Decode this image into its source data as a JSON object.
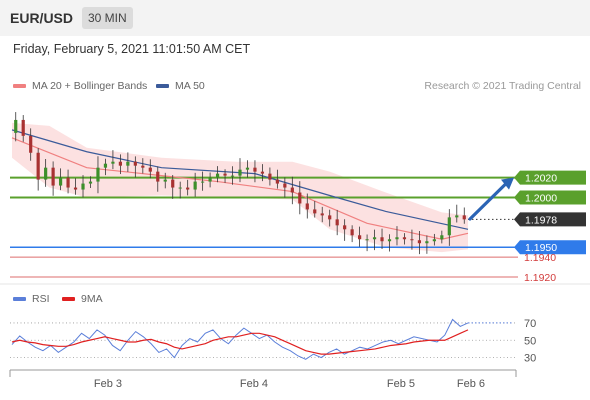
{
  "header": {
    "pair": "EUR/USD",
    "timeframe": "30 MIN"
  },
  "timestamp": "Friday, February 5, 2021 11:01:50 AM CET",
  "legend": {
    "ma20_label": "MA 20 + Bollinger Bands",
    "ma50_label": "MA 50",
    "ma20_color": "#f08080",
    "ma50_color": "#3b5b9a",
    "credit": "Research © 2021 Trading Central"
  },
  "rsi_legend": {
    "rsi_label": "RSI",
    "ma_label": "9MA",
    "rsi_color": "#5b7fd9",
    "ma_color": "#e02020"
  },
  "chart_data": [
    {
      "type": "line",
      "subtype": "candlestick",
      "price_range": [
        1.1915,
        1.2088
      ],
      "x_ticks": [
        "Feb 3",
        "Feb 4",
        "Feb 5",
        "Feb 6"
      ],
      "last_price": "1.1978",
      "levels": [
        {
          "value": "1.2020",
          "kind": "resistance",
          "color": "#5aa02c"
        },
        {
          "value": "1.2000",
          "kind": "resistance",
          "color": "#5aa02c"
        },
        {
          "value": "1.1950",
          "kind": "pivot",
          "color": "#2f7bea"
        },
        {
          "value": "1.1940",
          "kind": "support",
          "color": "#d23c3c"
        },
        {
          "value": "1.1920",
          "kind": "support",
          "color": "#d23c3c"
        }
      ],
      "close_path": [
        [
          0,
          1.2065
        ],
        [
          4,
          1.2078
        ],
        [
          8,
          1.2062
        ],
        [
          12,
          1.2045
        ],
        [
          16,
          1.2018
        ],
        [
          20,
          1.203
        ],
        [
          24,
          1.2012
        ],
        [
          28,
          1.202
        ],
        [
          32,
          1.201
        ],
        [
          36,
          1.2008
        ],
        [
          40,
          1.2014
        ],
        [
          44,
          1.2016
        ],
        [
          48,
          1.203
        ],
        [
          52,
          1.2034
        ],
        [
          56,
          1.2036
        ],
        [
          60,
          1.2032
        ],
        [
          64,
          1.2036
        ],
        [
          68,
          1.2032
        ],
        [
          72,
          1.203
        ],
        [
          76,
          1.2026
        ],
        [
          80,
          1.2016
        ],
        [
          84,
          1.2018
        ],
        [
          88,
          1.201
        ],
        [
          92,
          1.201
        ],
        [
          96,
          1.2008
        ],
        [
          100,
          1.2016
        ],
        [
          104,
          1.2016
        ],
        [
          108,
          1.202
        ],
        [
          112,
          1.2024
        ],
        [
          116,
          1.2022
        ],
        [
          120,
          1.2022
        ],
        [
          124,
          1.2028
        ],
        [
          128,
          1.203
        ],
        [
          132,
          1.2026
        ],
        [
          136,
          1.2024
        ],
        [
          140,
          1.2018
        ],
        [
          144,
          1.2014
        ],
        [
          148,
          1.201
        ],
        [
          152,
          1.2005
        ],
        [
          156,
          1.1994
        ],
        [
          160,
          1.1988
        ],
        [
          164,
          1.1984
        ],
        [
          168,
          1.1982
        ],
        [
          172,
          1.1978
        ],
        [
          176,
          1.1972
        ],
        [
          180,
          1.1968
        ],
        [
          184,
          1.1962
        ],
        [
          188,
          1.1958
        ],
        [
          192,
          1.1958
        ],
        [
          196,
          1.196
        ],
        [
          200,
          1.1956
        ],
        [
          204,
          1.1958
        ],
        [
          208,
          1.196
        ],
        [
          212,
          1.1958
        ],
        [
          216,
          1.1957
        ],
        [
          220,
          1.1954
        ],
        [
          224,
          1.1956
        ],
        [
          228,
          1.1958
        ],
        [
          232,
          1.1962
        ],
        [
          236,
          1.198
        ],
        [
          240,
          1.1982
        ],
        [
          244,
          1.1978
        ]
      ],
      "ma20_path": [
        [
          0,
          1.206
        ],
        [
          40,
          1.203
        ],
        [
          80,
          1.2022
        ],
        [
          110,
          1.2016
        ],
        [
          150,
          1.2006
        ],
        [
          190,
          1.1974
        ],
        [
          230,
          1.1958
        ],
        [
          244,
          1.1964
        ]
      ],
      "ma50_path": [
        [
          0,
          1.2068
        ],
        [
          40,
          1.2046
        ],
        [
          80,
          1.203
        ],
        [
          130,
          1.2024
        ],
        [
          170,
          1.2002
        ],
        [
          200,
          1.1986
        ],
        [
          244,
          1.1968
        ]
      ],
      "bb_upper": [
        [
          0,
          1.2075
        ],
        [
          20,
          1.2072
        ],
        [
          40,
          1.205
        ],
        [
          80,
          1.204
        ],
        [
          120,
          1.2036
        ],
        [
          150,
          1.2036
        ],
        [
          170,
          1.2026
        ],
        [
          200,
          1.2005
        ],
        [
          230,
          1.1985
        ],
        [
          244,
          1.1982
        ]
      ],
      "bb_lower": [
        [
          0,
          1.204
        ],
        [
          20,
          1.201
        ],
        [
          40,
          1.2
        ],
        [
          80,
          1.2002
        ],
        [
          120,
          1.2
        ],
        [
          150,
          1.1998
        ],
        [
          170,
          1.1968
        ],
        [
          200,
          1.195
        ],
        [
          230,
          1.1945
        ],
        [
          244,
          1.1948
        ]
      ]
    },
    {
      "type": "line",
      "title": "RSI",
      "yticks": [
        70,
        50,
        30
      ],
      "y_range": [
        18,
        78
      ],
      "series": [
        {
          "name": "RSI",
          "values": [
            45,
            55,
            48,
            42,
            38,
            44,
            36,
            42,
            48,
            58,
            52,
            62,
            56,
            44,
            38,
            50,
            60,
            54,
            46,
            36,
            40,
            30,
            44,
            52,
            48,
            58,
            62,
            52,
            46,
            56,
            64,
            58,
            52,
            56,
            48,
            42,
            38,
            32,
            28,
            34,
            30,
            36,
            40,
            34,
            38,
            42,
            40,
            44,
            48,
            50,
            46,
            50,
            54,
            52,
            50,
            48,
            56,
            74,
            66,
            70
          ]
        },
        {
          "name": "9MA",
          "values": [
            48,
            50,
            48,
            47,
            45,
            44,
            43,
            43,
            45,
            48,
            50,
            52,
            54,
            52,
            50,
            48,
            48,
            50,
            51,
            48,
            46,
            42,
            40,
            42,
            44,
            46,
            50,
            52,
            54,
            54,
            56,
            58,
            58,
            56,
            54,
            50,
            46,
            42,
            38,
            36,
            34,
            34,
            35,
            36,
            37,
            38,
            39,
            40,
            42,
            44,
            45,
            46,
            48,
            49,
            50,
            50,
            50,
            54,
            58,
            62
          ]
        }
      ]
    }
  ]
}
